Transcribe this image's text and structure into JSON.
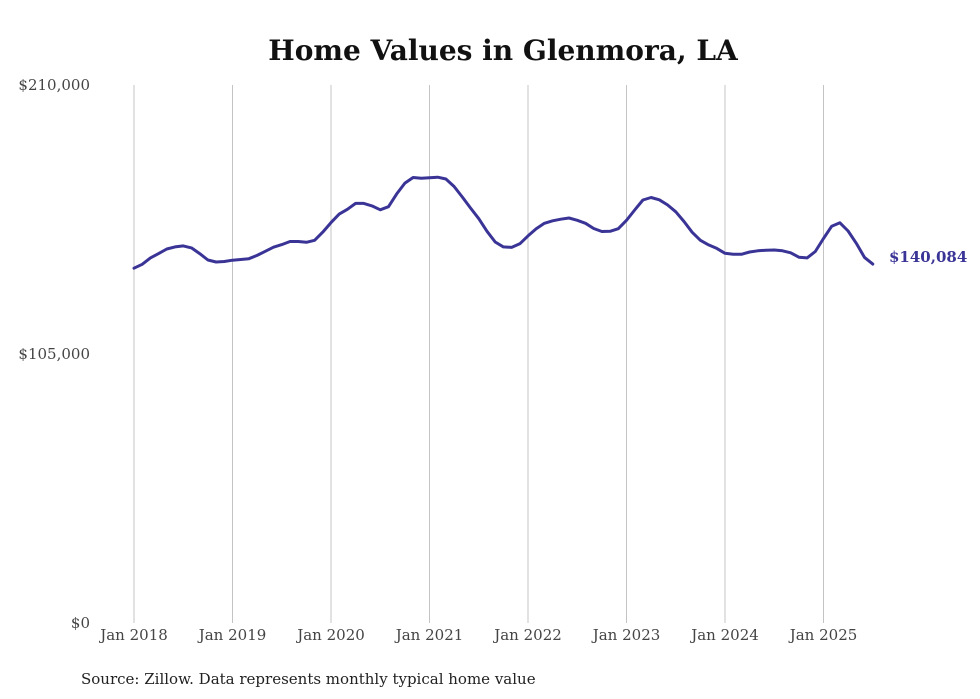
{
  "chart_data": {
    "type": "line",
    "title": "Home Values in Glenmora, LA",
    "xlabel": "",
    "ylabel": "",
    "ylim": [
      0,
      210000
    ],
    "y_ticks": [
      "$210,000",
      "$105,000",
      "$0"
    ],
    "y_tick_values": [
      210000,
      105000,
      0
    ],
    "x_ticks": [
      "Jan 2018",
      "Jan 2019",
      "Jan 2020",
      "Jan 2021",
      "Jan 2022",
      "Jan 2023",
      "Jan 2024",
      "Jan 2025"
    ],
    "x_tick_values": [
      "2018-01",
      "2019-01",
      "2020-01",
      "2021-01",
      "2022-01",
      "2023-01",
      "2024-01",
      "2025-01"
    ],
    "grid": "vertical",
    "line_color": "#3a3496",
    "series": [
      {
        "x": [
          "2018-01",
          "2018-02",
          "2018-03",
          "2018-04",
          "2018-05",
          "2018-06",
          "2018-07",
          "2018-08",
          "2018-09",
          "2018-10",
          "2018-11",
          "2018-12",
          "2019-01",
          "2019-02",
          "2019-03",
          "2019-04",
          "2019-05",
          "2019-06",
          "2019-07",
          "2019-08",
          "2019-09",
          "2019-10",
          "2019-11",
          "2019-12",
          "2020-01",
          "2020-02",
          "2020-03",
          "2020-04",
          "2020-05",
          "2020-06",
          "2020-07",
          "2020-08",
          "2020-09",
          "2020-10",
          "2020-11",
          "2020-12",
          "2021-01",
          "2021-02",
          "2021-03",
          "2021-04",
          "2021-05",
          "2021-06",
          "2021-07",
          "2021-08",
          "2021-09",
          "2021-10",
          "2021-11",
          "2021-12",
          "2022-01",
          "2022-02",
          "2022-03",
          "2022-04",
          "2022-05",
          "2022-06",
          "2022-07",
          "2022-08",
          "2022-09",
          "2022-10",
          "2022-11",
          "2022-12",
          "2023-01",
          "2023-02",
          "2023-03",
          "2023-04",
          "2023-05",
          "2023-06",
          "2023-07",
          "2023-08",
          "2023-09",
          "2023-10",
          "2023-11",
          "2023-12",
          "2024-01",
          "2024-02",
          "2024-03",
          "2024-04",
          "2024-05",
          "2024-06",
          "2024-07",
          "2024-08",
          "2024-09",
          "2024-10",
          "2024-11",
          "2024-12",
          "2025-01",
          "2025-02",
          "2025-03",
          "2025-04",
          "2025-05",
          "2025-06",
          "2025-07"
        ],
        "values": [
          138500,
          140000,
          142500,
          144200,
          146000,
          146800,
          147200,
          146400,
          144200,
          141700,
          140900,
          141100,
          141600,
          141900,
          142200,
          143500,
          145100,
          146700,
          147700,
          148900,
          148900,
          148600,
          149400,
          152600,
          156300,
          159600,
          161500,
          163800,
          163800,
          162800,
          161300,
          162500,
          167500,
          171700,
          173900,
          173600,
          173800,
          174000,
          173300,
          170400,
          166300,
          162000,
          157800,
          152900,
          148700,
          146800,
          146600,
          148000,
          151100,
          153900,
          156000,
          157000,
          157600,
          158100,
          157200,
          156000,
          154000,
          152800,
          152900,
          153900,
          157200,
          161200,
          165100,
          166100,
          165200,
          163200,
          160500,
          156700,
          152500,
          149400,
          147600,
          146200,
          144300,
          143900,
          143900,
          144800,
          145300,
          145500,
          145600,
          145300,
          144500,
          142800,
          142500,
          145000,
          150100,
          154900,
          156200,
          153000,
          148200,
          142700,
          140084
        ]
      }
    ],
    "end_label": "$140,084",
    "source": "Source: Zillow. Data represents monthly typical home value"
  }
}
